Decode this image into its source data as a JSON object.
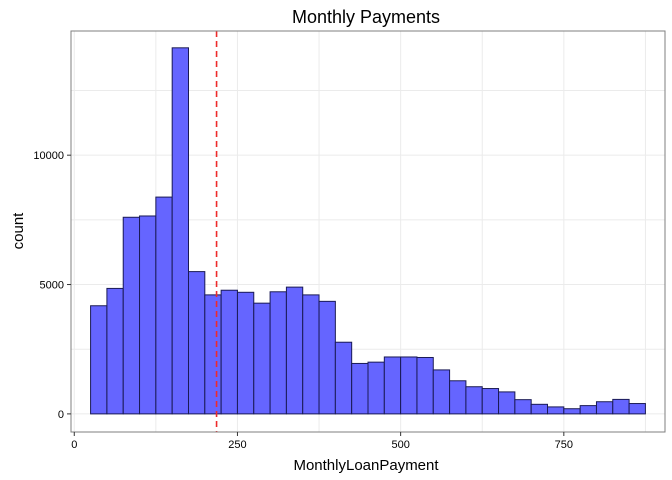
{
  "chart_data": {
    "type": "bar",
    "title": "Monthly Payments",
    "xlabel": "MonthlyLoanPayment",
    "ylabel": "count",
    "xlim": [
      -5,
      905
    ],
    "ylim": [
      -700,
      14800
    ],
    "x_ticks": [
      0,
      250,
      500,
      750
    ],
    "x_tick_labels": [
      "0",
      "250",
      "500",
      "750"
    ],
    "y_ticks": [
      0,
      5000,
      10000
    ],
    "y_tick_labels": [
      "0",
      "5000",
      "10000"
    ],
    "bin_width": 25,
    "bin_starts": [
      25,
      50,
      75,
      100,
      125,
      150,
      175,
      200,
      225,
      250,
      275,
      300,
      325,
      350,
      375,
      400,
      425,
      450,
      475,
      500,
      525,
      550,
      575,
      600,
      625,
      650,
      675,
      700,
      725,
      750,
      775,
      800,
      825,
      850
    ],
    "values": [
      4180,
      4850,
      7600,
      7650,
      8380,
      14150,
      5500,
      4600,
      4780,
      4700,
      4280,
      4720,
      4900,
      4600,
      4350,
      2770,
      1950,
      2000,
      2200,
      2200,
      2180,
      1700,
      1280,
      1050,
      980,
      850,
      550,
      370,
      270,
      200,
      320,
      470,
      560,
      400
    ],
    "reference_line": {
      "x": 218,
      "color": "#ee2b2b",
      "style": "dashed"
    },
    "bar_fill": "#6565ff",
    "bar_stroke": "#1a1a55",
    "grid": true
  }
}
